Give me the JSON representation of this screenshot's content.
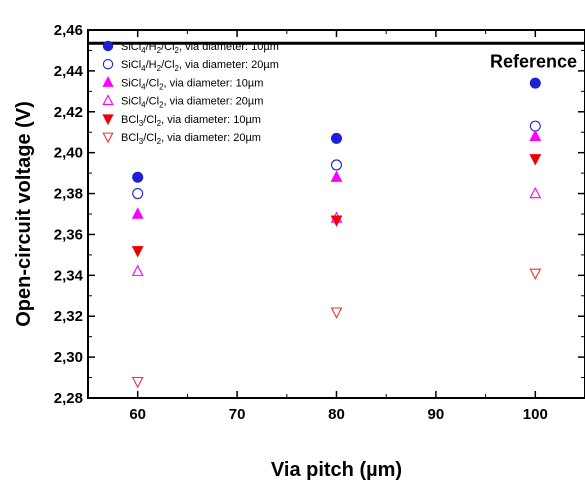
{
  "chart_data": {
    "type": "scatter",
    "xlabel": "Via pitch (µm)",
    "ylabel": "Open-circuit voltage (V)",
    "xlim": [
      55,
      105
    ],
    "ylim": [
      2.28,
      2.46
    ],
    "x_ticks": [
      60,
      70,
      80,
      90,
      100
    ],
    "x_tick_labels": [
      "60",
      "70",
      "80",
      "90",
      "100"
    ],
    "y_ticks": [
      2.28,
      2.3,
      2.32,
      2.34,
      2.36,
      2.38,
      2.4,
      2.42,
      2.44,
      2.46
    ],
    "y_tick_labels": [
      "2,28",
      "2,30",
      "2,32",
      "2,34",
      "2,36",
      "2,38",
      "2,40",
      "2,42",
      "2,44",
      "2,46"
    ],
    "grid": false,
    "legend_position": "top-left",
    "reference": {
      "label": "Reference",
      "value": 2.4535,
      "color": "#000000"
    },
    "series": [
      {
        "name": "SiCl4/H2/Cl2, via diameter: 10µm",
        "legend_parts": [
          [
            "SiCl",
            "n"
          ],
          [
            "4",
            "s"
          ],
          [
            "/H",
            "n"
          ],
          [
            "2",
            "s"
          ],
          [
            "/Cl",
            "n"
          ],
          [
            "2",
            "s"
          ],
          [
            ", via diameter: 10µm",
            "n"
          ]
        ],
        "marker": "circle",
        "filled": true,
        "color": "#1f1fd6",
        "x": [
          60,
          80,
          100
        ],
        "y": [
          2.388,
          2.407,
          2.434
        ]
      },
      {
        "name": "SiCl4/H2/Cl2, via diameter: 20µm",
        "legend_parts": [
          [
            "SiCl",
            "n"
          ],
          [
            "4",
            "s"
          ],
          [
            "/H",
            "n"
          ],
          [
            "2",
            "s"
          ],
          [
            "/Cl",
            "n"
          ],
          [
            "2",
            "s"
          ],
          [
            ", via diameter: 20µm",
            "n"
          ]
        ],
        "marker": "circle",
        "filled": false,
        "color": "#1f1fd6",
        "x": [
          60,
          80,
          100
        ],
        "y": [
          2.38,
          2.394,
          2.413
        ]
      },
      {
        "name": "SiCl4/Cl2, via diameter: 10µm",
        "legend_parts": [
          [
            "SiCl",
            "n"
          ],
          [
            "4",
            "s"
          ],
          [
            "/Cl",
            "n"
          ],
          [
            "2",
            "s"
          ],
          [
            ", via diameter: 10µm",
            "n"
          ]
        ],
        "marker": "triangle-up",
        "filled": true,
        "color": "#ff00ff",
        "x": [
          60,
          80,
          100
        ],
        "y": [
          2.37,
          2.388,
          2.408
        ]
      },
      {
        "name": "SiCl4/Cl2, via diameter: 20µm",
        "legend_parts": [
          [
            "SiCl",
            "n"
          ],
          [
            "4",
            "s"
          ],
          [
            "/Cl",
            "n"
          ],
          [
            "2",
            "s"
          ],
          [
            ", via diameter: 20µm",
            "n"
          ]
        ],
        "marker": "triangle-up",
        "filled": false,
        "color": "#ff00ff",
        "x": [
          60,
          80,
          100
        ],
        "y": [
          2.342,
          2.368,
          2.38
        ]
      },
      {
        "name": "BCl3/Cl2, via diameter: 10µm",
        "legend_parts": [
          [
            "BCl",
            "n"
          ],
          [
            "3",
            "s"
          ],
          [
            "/Cl",
            "n"
          ],
          [
            "2",
            "s"
          ],
          [
            ", via diameter: 10µm",
            "n"
          ]
        ],
        "marker": "triangle-down",
        "filled": true,
        "color": "#ee0000",
        "x": [
          60,
          80,
          100
        ],
        "y": [
          2.352,
          2.367,
          2.397
        ]
      },
      {
        "name": "BCl3/Cl2, via diameter: 20µm",
        "legend_parts": [
          [
            "BCl",
            "n"
          ],
          [
            "3",
            "s"
          ],
          [
            "/Cl",
            "n"
          ],
          [
            "2",
            "s"
          ],
          [
            ", via diameter: 20µm",
            "n"
          ]
        ],
        "marker": "triangle-down",
        "filled": false,
        "color": "#ee3333",
        "x": [
          60,
          80,
          100
        ],
        "y": [
          2.288,
          2.322,
          2.341
        ]
      }
    ]
  }
}
